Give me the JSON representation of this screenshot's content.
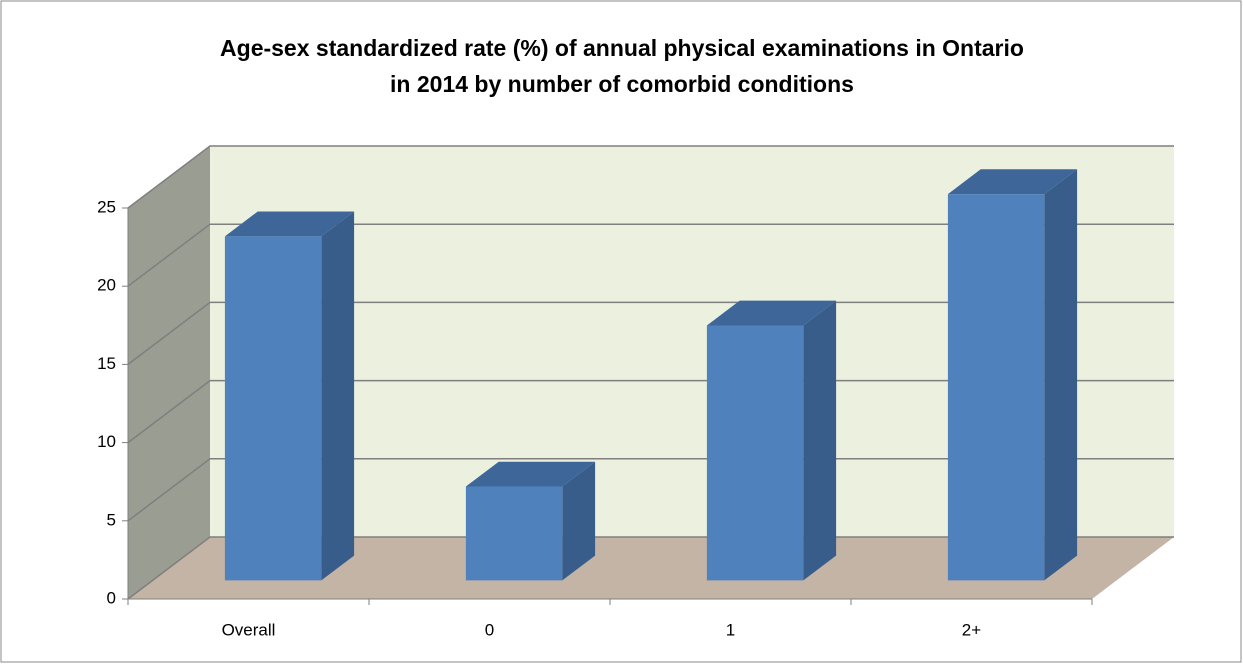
{
  "chart_data": {
    "type": "bar3d",
    "title": [
      "Age-sex standardized rate (%) of annual physical examinations in Ontario",
      "in 2014 by number of comorbid conditions"
    ],
    "categories": [
      "Overall",
      "0",
      "1",
      "2+"
    ],
    "values": [
      22,
      6,
      16.3,
      24.7
    ],
    "color": "#4f81bd",
    "ylim": [
      0,
      25
    ],
    "yticks": [
      0,
      5,
      10,
      15,
      20,
      25
    ],
    "grid": true
  }
}
